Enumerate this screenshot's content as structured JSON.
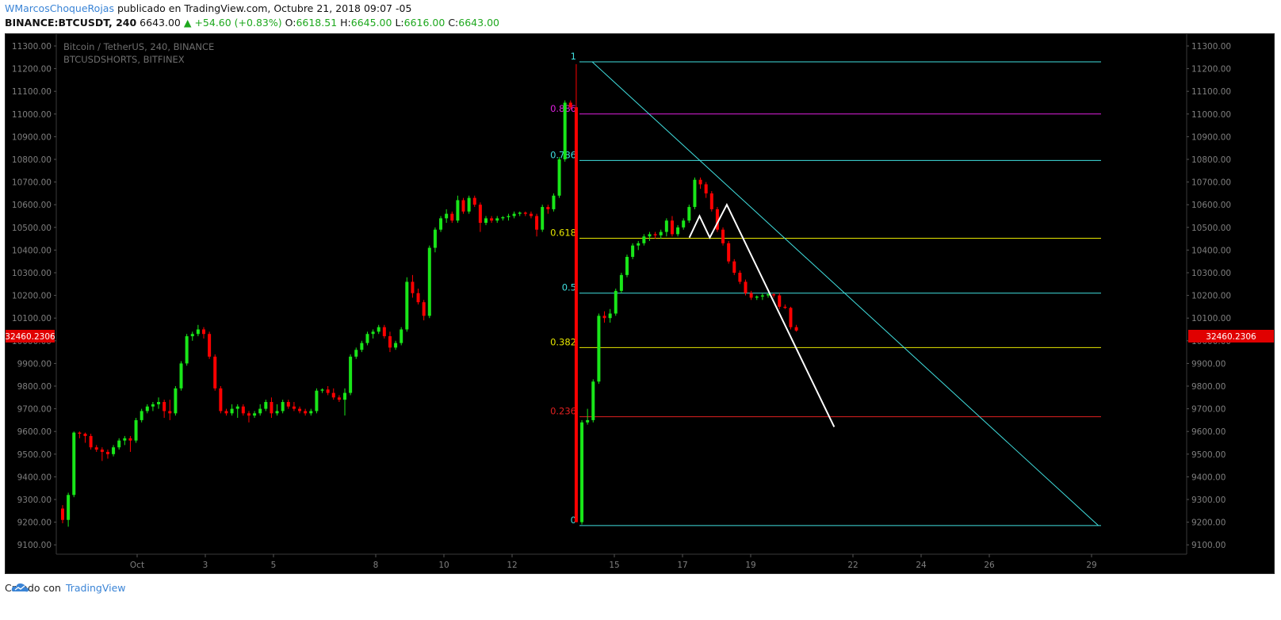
{
  "header": {
    "author": "WMarcosChoqueRojas",
    "published_text": " publicado en TradingView.com, Octubre 21, 2018 09:07 -05",
    "symbol": "BINANCE:BTCUSDT, 240",
    "price_line": "6643.00",
    "change": "▲ +54.60 (+0.83%)",
    "o_label": "O:",
    "o_value": "6618.51",
    "h_label": "H:",
    "h_value": "6645.00",
    "l_label": "L:",
    "l_value": "6616.00",
    "c_label": "C:",
    "c_value": "6643.00"
  },
  "legend": {
    "main_series": "Bitcoin / TetherUS, 240, BINANCE",
    "overlay_series": "BTCUSDSHORTS, BITFINEX"
  },
  "price_badge": "32460.2306",
  "footer": {
    "created_with": "Creado con",
    "brand": "TradingView"
  },
  "colors": {
    "up": "#19e619",
    "down": "#ff0000",
    "cyan": "#40e0e0",
    "magenta": "#e020e0",
    "yellow": "#e6e600",
    "red_level": "#e02020",
    "white": "#ffffff",
    "axis_text": "#7f7f7f",
    "badge": "#e00000"
  },
  "chart_data": {
    "type": "candlestick",
    "y_axis_ticks": [
      "11300.00",
      "11200.00",
      "11100.00",
      "11000.00",
      "10900.00",
      "10800.00",
      "10700.00",
      "10600.00",
      "10500.00",
      "10400.00",
      "10300.00",
      "10200.00",
      "10100.00",
      "10000.00",
      "9900.00",
      "9800.00",
      "9700.00",
      "9600.00",
      "9500.00",
      "9400.00",
      "9300.00",
      "9200.00",
      "9100.00"
    ],
    "ylim": [
      9060,
      11340
    ],
    "x_axis_ticks": [
      {
        "label": "Oct",
        "day": 1
      },
      {
        "label": "3",
        "day": 3
      },
      {
        "label": "5",
        "day": 5
      },
      {
        "label": "8",
        "day": 8
      },
      {
        "label": "10",
        "day": 10
      },
      {
        "label": "12",
        "day": 12
      },
      {
        "label": "15",
        "day": 15
      },
      {
        "label": "17",
        "day": 17
      },
      {
        "label": "19",
        "day": 19
      },
      {
        "label": "22",
        "day": 22
      },
      {
        "label": "24",
        "day": 24
      },
      {
        "label": "26",
        "day": 26
      },
      {
        "label": "29",
        "day": 29
      }
    ],
    "candles": [
      [
        9260,
        9275,
        9195,
        9210
      ],
      [
        9210,
        9330,
        9180,
        9320
      ],
      [
        9320,
        9600,
        9310,
        9595
      ],
      [
        9595,
        9600,
        9570,
        9590
      ],
      [
        9590,
        9595,
        9550,
        9580
      ],
      [
        9580,
        9590,
        9520,
        9530
      ],
      [
        9530,
        9540,
        9510,
        9520
      ],
      [
        9520,
        9530,
        9470,
        9510
      ],
      [
        9510,
        9520,
        9480,
        9500
      ],
      [
        9500,
        9540,
        9490,
        9530
      ],
      [
        9530,
        9570,
        9520,
        9560
      ],
      [
        9560,
        9580,
        9540,
        9570
      ],
      [
        9570,
        9580,
        9510,
        9560
      ],
      [
        9560,
        9660,
        9550,
        9650
      ],
      [
        9650,
        9700,
        9640,
        9690
      ],
      [
        9690,
        9720,
        9680,
        9710
      ],
      [
        9710,
        9730,
        9690,
        9720
      ],
      [
        9720,
        9750,
        9700,
        9730
      ],
      [
        9730,
        9740,
        9660,
        9690
      ],
      [
        9690,
        9740,
        9650,
        9680
      ],
      [
        9680,
        9800,
        9670,
        9790
      ],
      [
        9790,
        9910,
        9780,
        9900
      ],
      [
        9900,
        10030,
        9890,
        10020
      ],
      [
        10020,
        10040,
        10000,
        10030
      ],
      [
        10030,
        10070,
        10020,
        10050
      ],
      [
        10050,
        10060,
        10010,
        10030
      ],
      [
        10030,
        10040,
        9920,
        9930
      ],
      [
        9930,
        9940,
        9780,
        9790
      ],
      [
        9790,
        9800,
        9680,
        9690
      ],
      [
        9690,
        9700,
        9670,
        9680
      ],
      [
        9680,
        9720,
        9670,
        9700
      ],
      [
        9700,
        9720,
        9660,
        9710
      ],
      [
        9710,
        9720,
        9670,
        9680
      ],
      [
        9680,
        9690,
        9640,
        9670
      ],
      [
        9670,
        9690,
        9660,
        9680
      ],
      [
        9680,
        9720,
        9670,
        9700
      ],
      [
        9700,
        9740,
        9690,
        9730
      ],
      [
        9730,
        9750,
        9660,
        9680
      ],
      [
        9680,
        9720,
        9670,
        9690
      ],
      [
        9690,
        9740,
        9680,
        9730
      ],
      [
        9730,
        9740,
        9700,
        9710
      ],
      [
        9710,
        9730,
        9690,
        9700
      ],
      [
        9700,
        9710,
        9680,
        9690
      ],
      [
        9690,
        9700,
        9670,
        9680
      ],
      [
        9680,
        9700,
        9670,
        9690
      ],
      [
        9690,
        9790,
        9680,
        9780
      ],
      [
        9780,
        9790,
        9770,
        9785
      ],
      [
        9785,
        9800,
        9760,
        9770
      ],
      [
        9770,
        9790,
        9740,
        9750
      ],
      [
        9750,
        9760,
        9730,
        9740
      ],
      [
        9740,
        9790,
        9670,
        9770
      ],
      [
        9770,
        9940,
        9760,
        9930
      ],
      [
        9930,
        9970,
        9920,
        9960
      ],
      [
        9960,
        10000,
        9950,
        9990
      ],
      [
        9990,
        10040,
        9980,
        10030
      ],
      [
        10030,
        10050,
        10010,
        10040
      ],
      [
        10040,
        10070,
        10030,
        10060
      ],
      [
        10060,
        10070,
        10010,
        10020
      ],
      [
        10020,
        10040,
        9950,
        9970
      ],
      [
        9970,
        10000,
        9960,
        9990
      ],
      [
        9990,
        10060,
        9980,
        10050
      ],
      [
        10050,
        10280,
        10040,
        10260
      ],
      [
        10260,
        10290,
        10190,
        10210
      ],
      [
        10210,
        10230,
        10160,
        10170
      ],
      [
        10170,
        10180,
        10090,
        10110
      ],
      [
        10110,
        10420,
        10100,
        10410
      ],
      [
        10410,
        10500,
        10390,
        10490
      ],
      [
        10490,
        10550,
        10480,
        10540
      ],
      [
        10540,
        10580,
        10520,
        10560
      ],
      [
        10560,
        10570,
        10520,
        10530
      ],
      [
        10530,
        10640,
        10520,
        10620
      ],
      [
        10620,
        10630,
        10560,
        10570
      ],
      [
        10570,
        10640,
        10560,
        10630
      ],
      [
        10630,
        10640,
        10590,
        10600
      ],
      [
        10600,
        10610,
        10480,
        10520
      ],
      [
        10520,
        10550,
        10510,
        10540
      ],
      [
        10540,
        10550,
        10520,
        10530
      ],
      [
        10530,
        10550,
        10520,
        10540
      ],
      [
        10540,
        10550,
        10530,
        10545
      ],
      [
        10545,
        10560,
        10530,
        10550
      ],
      [
        10550,
        10570,
        10540,
        10560
      ],
      [
        10560,
        10570,
        10550,
        10565
      ],
      [
        10565,
        10570,
        10550,
        10560
      ],
      [
        10560,
        10570,
        10540,
        10550
      ],
      [
        10550,
        10560,
        10460,
        10490
      ],
      [
        10490,
        10600,
        10480,
        10590
      ],
      [
        10590,
        10600,
        10560,
        10580
      ],
      [
        10580,
        10650,
        10570,
        10640
      ],
      [
        10640,
        10810,
        10630,
        10800
      ],
      [
        10800,
        11060,
        10790,
        11050
      ],
      [
        11050,
        11060,
        11020,
        11030
      ],
      [
        11030,
        11220,
        9200,
        9200
      ],
      [
        9200,
        9650,
        9190,
        9640
      ],
      [
        9640,
        9700,
        9630,
        9650
      ],
      [
        9650,
        9830,
        9640,
        9820
      ],
      [
        9820,
        10120,
        9810,
        10110
      ],
      [
        10110,
        10130,
        10080,
        10100
      ],
      [
        10100,
        10140,
        10080,
        10120
      ],
      [
        10120,
        10230,
        10110,
        10220
      ],
      [
        10220,
        10300,
        10210,
        10290
      ],
      [
        10290,
        10380,
        10280,
        10370
      ],
      [
        10370,
        10430,
        10360,
        10420
      ],
      [
        10420,
        10440,
        10400,
        10430
      ],
      [
        10430,
        10470,
        10420,
        10460
      ],
      [
        10460,
        10480,
        10440,
        10470
      ],
      [
        10470,
        10480,
        10450,
        10465
      ],
      [
        10465,
        10490,
        10450,
        10480
      ],
      [
        10480,
        10540,
        10460,
        10530
      ],
      [
        10530,
        10550,
        10460,
        10470
      ],
      [
        10470,
        10510,
        10460,
        10500
      ],
      [
        10500,
        10540,
        10490,
        10530
      ],
      [
        10530,
        10600,
        10520,
        10590
      ],
      [
        10590,
        10720,
        10580,
        10710
      ],
      [
        10710,
        10720,
        10670,
        10690
      ],
      [
        10690,
        10700,
        10630,
        10650
      ],
      [
        10650,
        10660,
        10570,
        10580
      ],
      [
        10580,
        10590,
        10480,
        10490
      ],
      [
        10490,
        10500,
        10420,
        10430
      ],
      [
        10430,
        10440,
        10340,
        10350
      ],
      [
        10350,
        10360,
        10290,
        10300
      ],
      [
        10300,
        10310,
        10250,
        10260
      ],
      [
        10260,
        10270,
        10200,
        10210
      ],
      [
        10210,
        10220,
        10180,
        10190
      ],
      [
        10190,
        10200,
        10180,
        10195
      ],
      [
        10195,
        10210,
        10180,
        10200
      ],
      [
        10200,
        10210,
        10190,
        10205
      ],
      [
        10205,
        10210,
        10190,
        10200
      ],
      [
        10200,
        10210,
        10140,
        10150
      ],
      [
        10150,
        10160,
        10140,
        10145
      ],
      [
        10145,
        10150,
        10050,
        10060
      ],
      [
        10060,
        10070,
        10040,
        10045
      ]
    ],
    "fib_levels": [
      {
        "label": "1",
        "value": 11230,
        "color": "cyan"
      },
      {
        "label": "0.886",
        "value": 11000,
        "color": "magenta"
      },
      {
        "label": "0.786",
        "value": 10795,
        "color": "cyan"
      },
      {
        "label": "0.618",
        "value": 10452,
        "color": "yellow"
      },
      {
        "label": "0.5",
        "value": 10210,
        "color": "cyan"
      },
      {
        "label": "0.382",
        "value": 9970,
        "color": "yellow"
      },
      {
        "label": "0.236",
        "value": 9665,
        "color": "red_level"
      },
      {
        "label": "0",
        "value": 9185,
        "color": "cyan"
      }
    ],
    "trend_line": {
      "from": {
        "day": 14.35,
        "price": 11230
      },
      "to": {
        "day": 29.2,
        "price": 9185
      }
    },
    "pattern_line": [
      {
        "day": 17.2,
        "price": 10455
      },
      {
        "day": 17.5,
        "price": 10550
      },
      {
        "day": 17.8,
        "price": 10455
      },
      {
        "day": 18.3,
        "price": 10600
      },
      {
        "day": 21.45,
        "price": 9620
      }
    ]
  }
}
